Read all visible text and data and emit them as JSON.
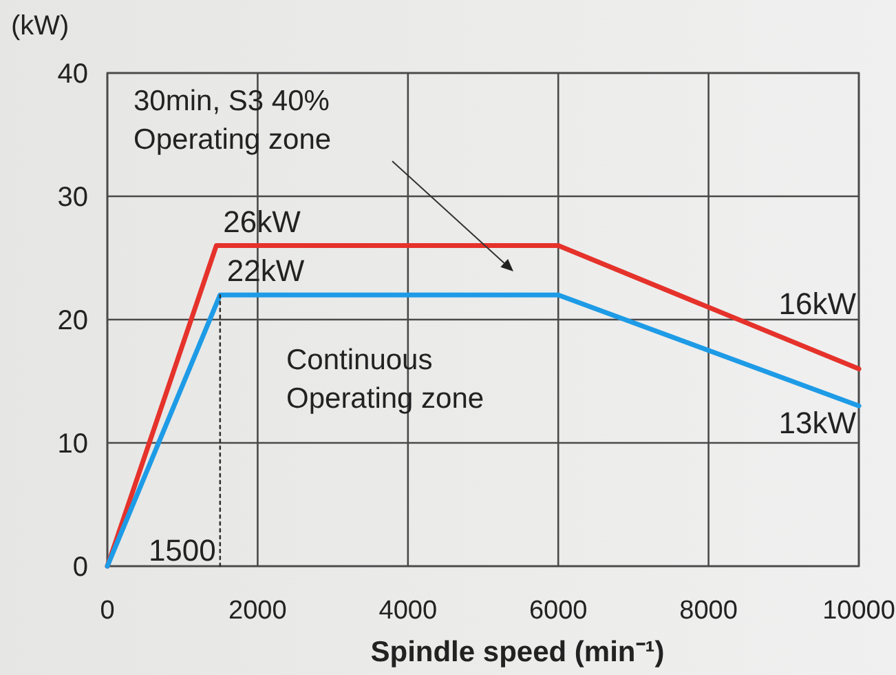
{
  "chart_data": {
    "type": "line",
    "xlabel": "Spindle speed (min⁻¹)",
    "ylabel": "(kW)",
    "xlim": [
      0,
      10000
    ],
    "ylim": [
      0,
      40
    ],
    "xticks": [
      0,
      2000,
      4000,
      6000,
      8000,
      10000
    ],
    "yticks": [
      0,
      10,
      20,
      30,
      40
    ],
    "grid": true,
    "series": [
      {
        "color": "#e5322b",
        "x": [
          0,
          1450,
          6000,
          10000
        ],
        "values": [
          0,
          26,
          26,
          16
        ],
        "value_labels": [
          null,
          "26kW",
          null,
          "16kW"
        ]
      },
      {
        "color": "#1e9be6",
        "x": [
          0,
          1500,
          6000,
          10000
        ],
        "values": [
          0,
          22,
          22,
          13
        ],
        "value_labels": [
          null,
          "22kW",
          null,
          "13kW"
        ]
      },
      {
        "color": "#333333",
        "line_style": "dotted",
        "x": [
          1500,
          1500
        ],
        "values": [
          0,
          22
        ]
      }
    ],
    "annotations": [
      "30min, S3 40%\nOperating zone",
      "Continuous\nOperating zone",
      {
        "text": "1500",
        "x": 1500,
        "y": 0
      }
    ]
  }
}
